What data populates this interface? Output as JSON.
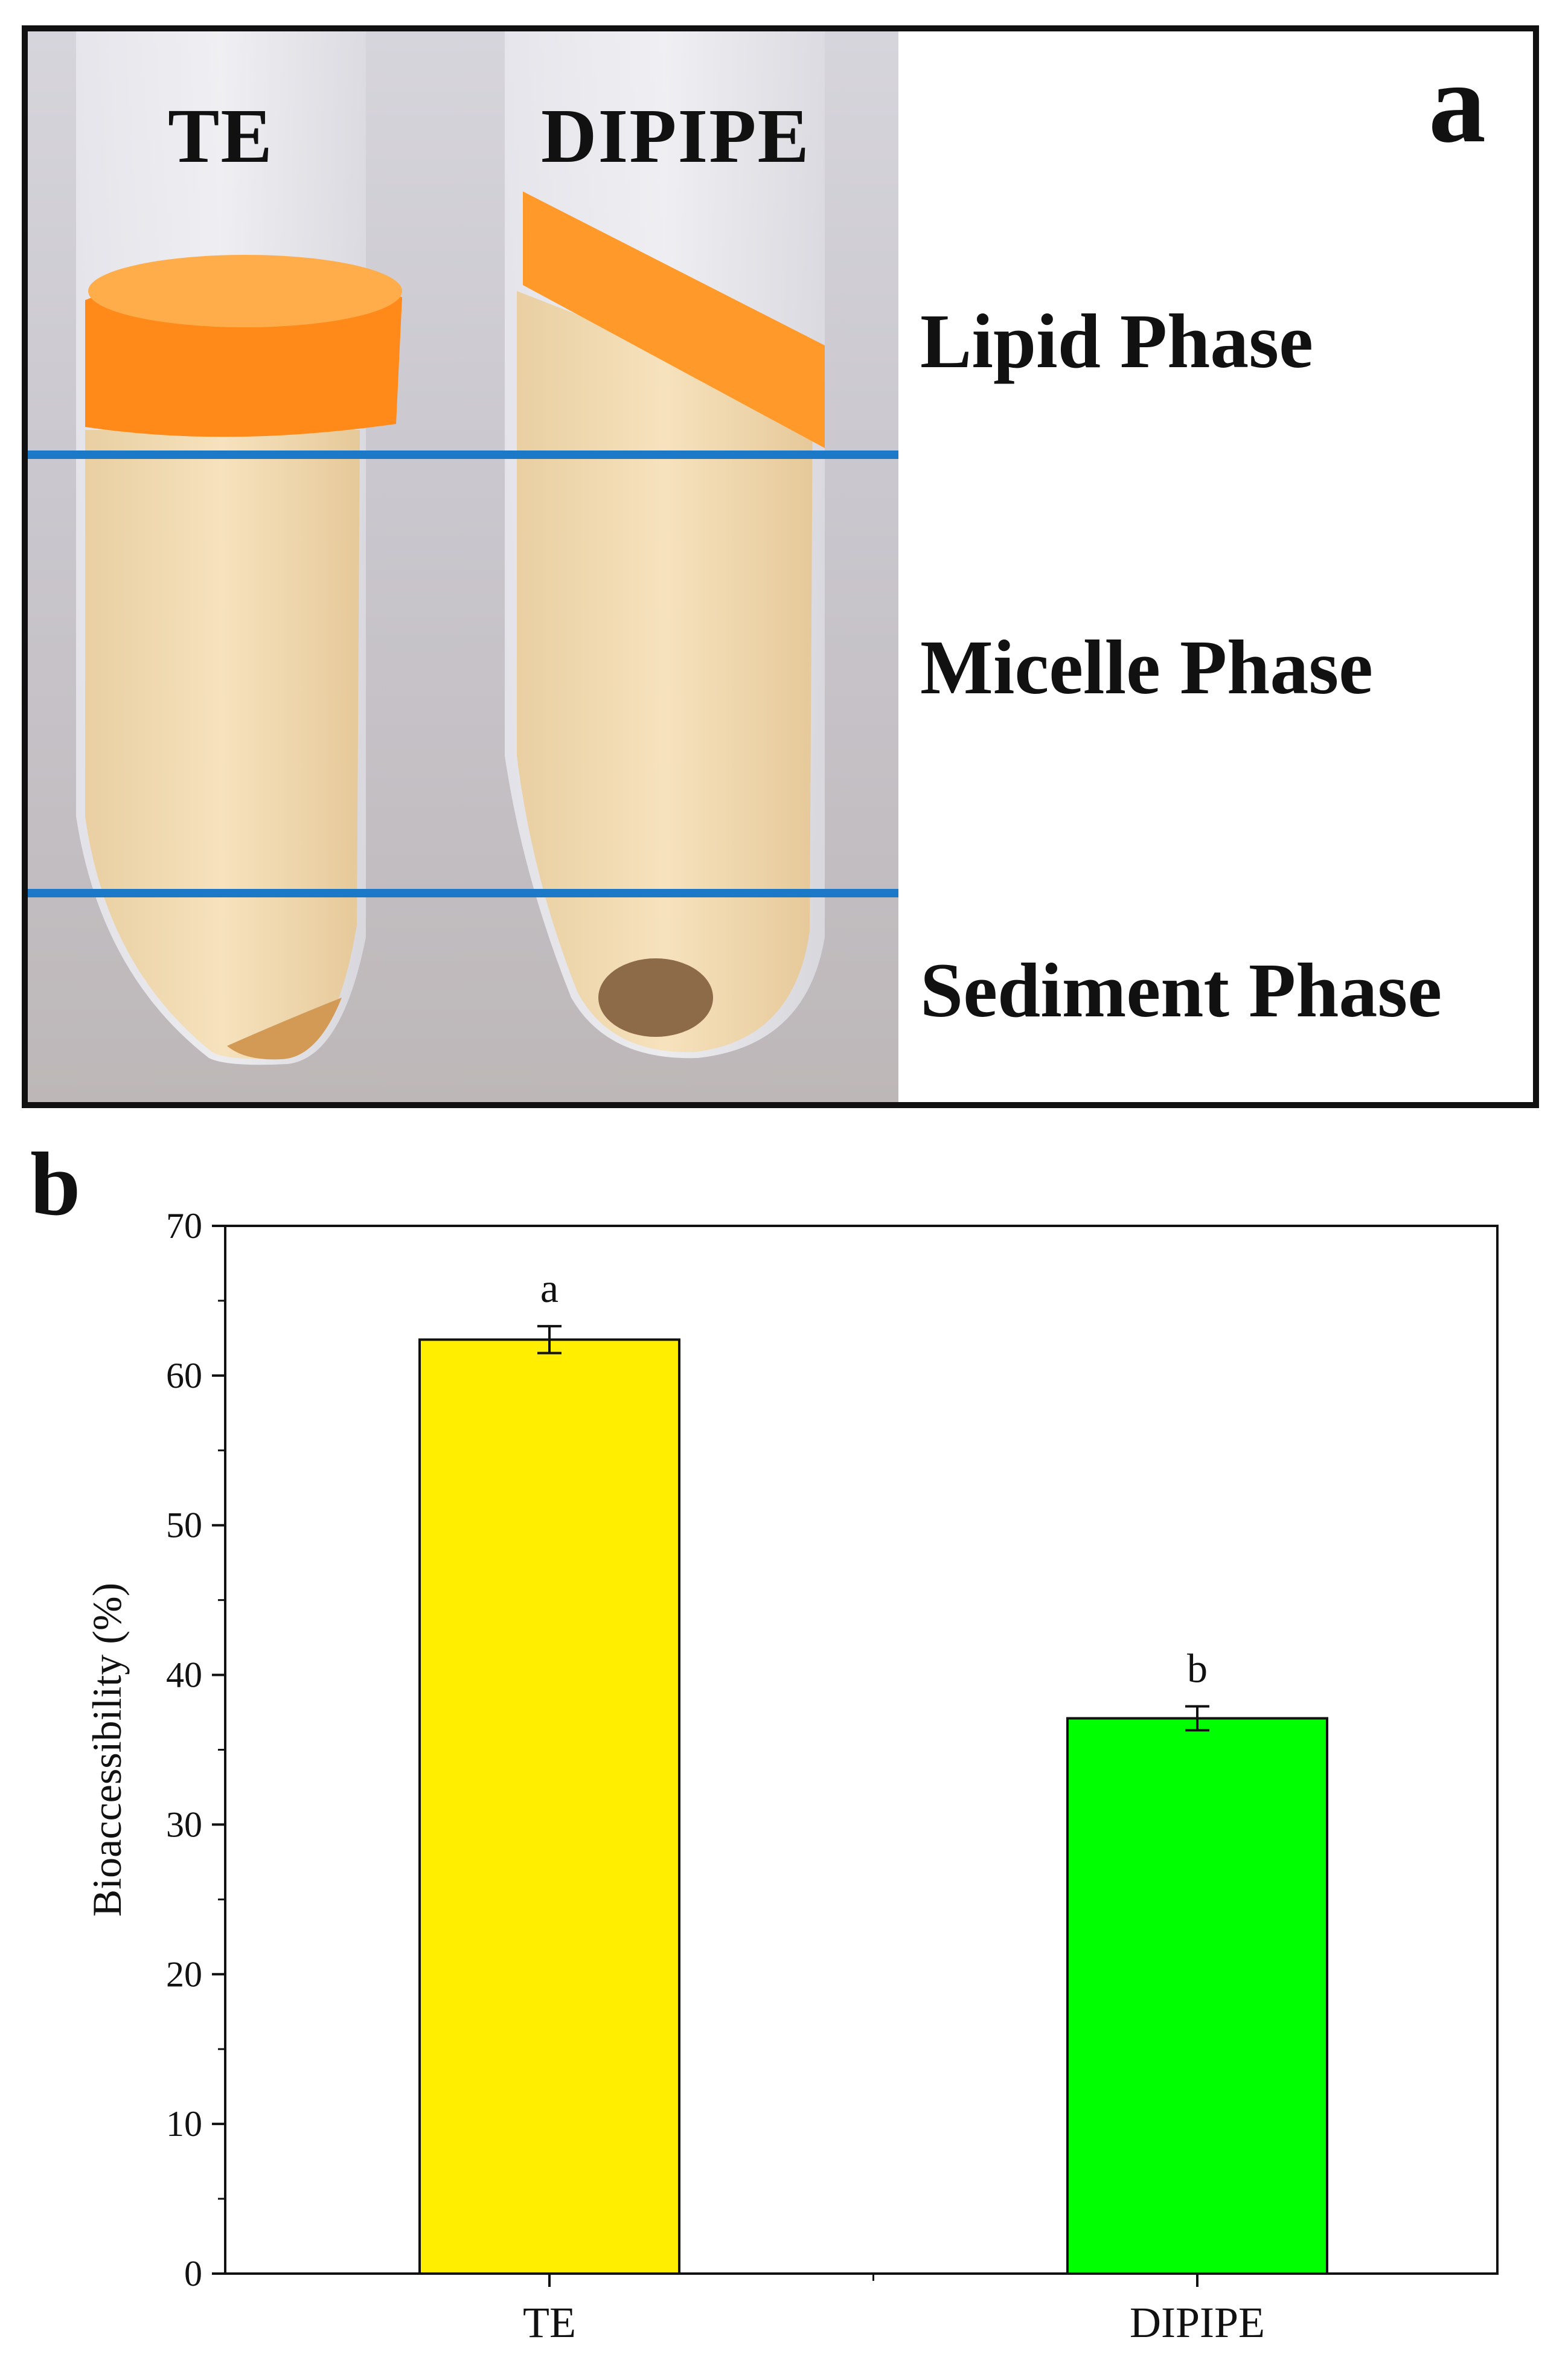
{
  "panel_a": {
    "letter": "a",
    "tube_labels": [
      "TE",
      "DIPIPE"
    ],
    "phases": [
      "Lipid Phase",
      "Micelle Phase",
      "Sediment Phase"
    ],
    "colors": {
      "divider": "#1c79c8",
      "lipid": "#ff8a1a",
      "liquid": "#f3dcae"
    }
  },
  "panel_b": {
    "letter": "b"
  },
  "chart_data": {
    "type": "bar",
    "categories": [
      "TE",
      "DIPIPE"
    ],
    "values": [
      62.4,
      37.1
    ],
    "errors": [
      0.9,
      0.8
    ],
    "significance": [
      "a",
      "b"
    ],
    "bar_colors": [
      "#ffee00",
      "#00ff00"
    ],
    "title": "",
    "xlabel": "",
    "ylabel": "Bioaccessibility (%)",
    "ylim": [
      0,
      70
    ],
    "yticks": [
      0,
      10,
      20,
      30,
      40,
      50,
      60,
      70
    ],
    "grid": false
  }
}
